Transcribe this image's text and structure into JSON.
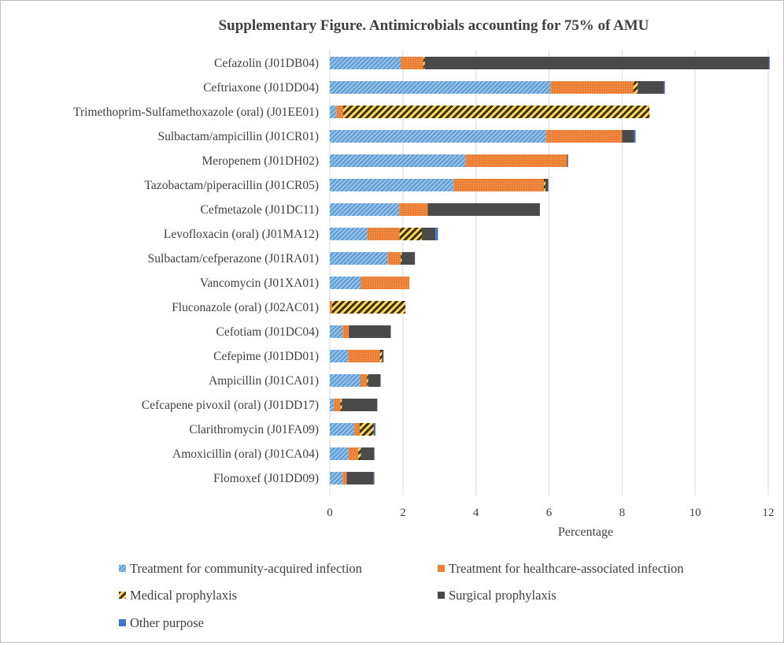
{
  "chart_data": {
    "type": "bar",
    "orientation": "horizontal",
    "stacked": true,
    "title": "Supplementary Figure. Antimicrobials accounting for 75% of AMU",
    "xlabel": "Percentage",
    "ylabel": "",
    "xlim": [
      0,
      12
    ],
    "xticks": [
      0,
      2,
      4,
      6,
      8,
      10,
      12
    ],
    "grid": "vertical",
    "legend_position": "bottom",
    "categories": [
      "Cefazolin (J01DB04)",
      "Ceftriaxone (J01DD04)",
      "Trimethoprim-Sulfamethoxazole (oral) (J01EE01)",
      "Sulbactam/ampicillin (J01CR01)",
      "Meropenem (J01DH02)",
      "Tazobactam/piperacillin (J01CR05)",
      "Cefmetazole (J01DC11)",
      "Levofloxacin (oral) (J01MA12)",
      "Sulbactam/cefperazone (J01RA01)",
      "Vancomycin (J01XA01)",
      "Fluconazole (oral) (J02AC01)",
      "Cefotiam (J01DC04)",
      "Cefepime (J01DD01)",
      "Ampicillin (J01CA01)",
      "Cefcapene pivoxil (oral) (J01DD17)",
      "Clarithromycin (J01FA09)",
      "Amoxicillin (oral) (J01CA04)",
      "Flomoxef (J01DD09)"
    ],
    "series": [
      {
        "name": "Treatment for community-acquired infection",
        "color": "#5b9bd5",
        "pattern": "diagonal-stripes",
        "values": [
          1.94,
          6.04,
          0.18,
          5.92,
          3.71,
          3.39,
          1.9,
          1.03,
          1.59,
          0.85,
          0.0,
          0.35,
          0.5,
          0.84,
          0.11,
          0.67,
          0.51,
          0.35
        ]
      },
      {
        "name": "Treatment for healthcare-associated infection",
        "color": "#ed7d31",
        "pattern": "dotted",
        "values": [
          0.62,
          2.27,
          0.19,
          2.08,
          2.78,
          2.47,
          0.78,
          0.88,
          0.35,
          1.33,
          0.06,
          0.17,
          0.87,
          0.18,
          0.18,
          0.15,
          0.27,
          0.11
        ]
      },
      {
        "name": "Medical prophylaxis",
        "color": "#ffc000",
        "pattern": "wide-diagonal-stripes",
        "values": [
          0.04,
          0.12,
          8.38,
          0.0,
          0.0,
          0.04,
          0.0,
          0.61,
          0.03,
          0.0,
          2.01,
          0.0,
          0.06,
          0.03,
          0.04,
          0.38,
          0.07,
          0.0
        ]
      },
      {
        "name": "Surgical prophylaxis",
        "color": "#4a4a4a",
        "pattern": "solid",
        "values": [
          9.42,
          0.72,
          0.0,
          0.33,
          0.03,
          0.08,
          3.07,
          0.37,
          0.36,
          0.0,
          0.0,
          1.15,
          0.04,
          0.34,
          0.97,
          0.0,
          0.37,
          0.74
        ]
      },
      {
        "name": "Other purpose",
        "color": "#4472c4",
        "pattern": "solid",
        "values": [
          0.02,
          0.02,
          0.0,
          0.04,
          0.0,
          0.0,
          0.0,
          0.07,
          0.0,
          0.0,
          0.0,
          0.0,
          0.0,
          0.0,
          0.0,
          0.05,
          0.0,
          0.02
        ]
      }
    ]
  }
}
